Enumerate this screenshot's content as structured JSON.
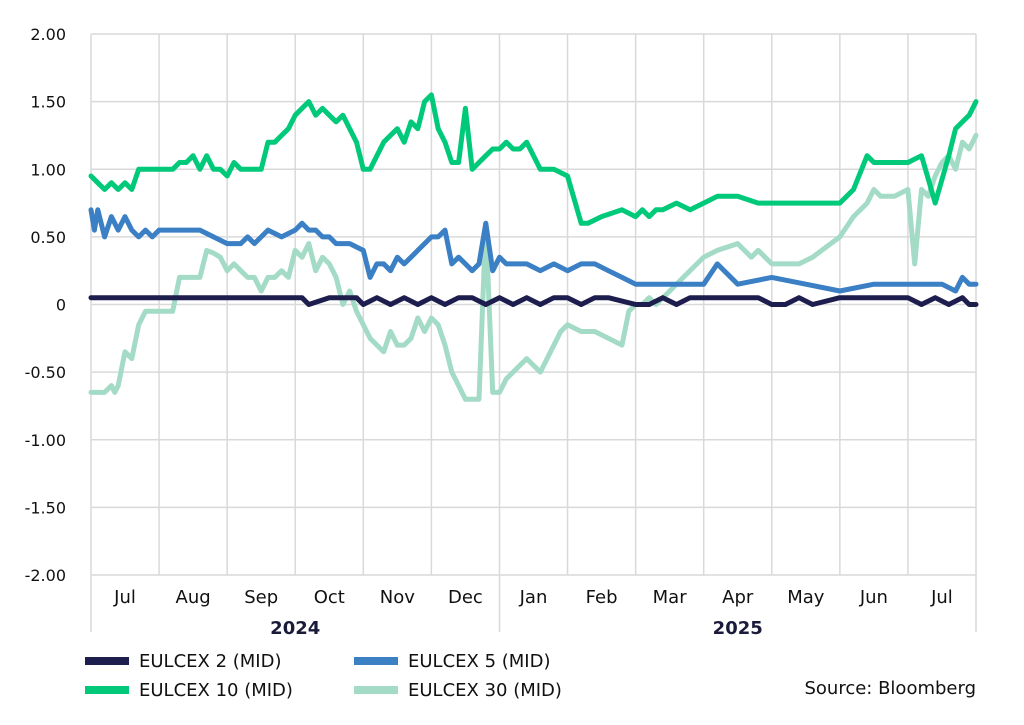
{
  "chart_data": {
    "type": "line",
    "title": "",
    "xlabel": "",
    "ylabel": "",
    "ylim": [
      -2.0,
      2.0
    ],
    "yticks": [
      "2.00",
      "1.50",
      "1.00",
      "0.50",
      "0",
      "-0.50",
      "-1.00",
      "-1.50",
      "-2.00"
    ],
    "ytick_values": [
      2.0,
      1.5,
      1.0,
      0.5,
      0,
      -0.5,
      -1.0,
      -1.5,
      -2.0
    ],
    "month_labels": [
      "Jul",
      "Aug",
      "Sep",
      "Oct",
      "Nov",
      "Dec",
      "Jan",
      "Feb",
      "Mar",
      "Apr",
      "May",
      "Jun",
      "Jul"
    ],
    "month_label_pos": [
      0.5,
      1.5,
      2.5,
      3.5,
      4.5,
      5.5,
      6.5,
      7.5,
      8.5,
      9.5,
      10.5,
      11.5,
      12.5
    ],
    "month_boundaries": [
      0,
      1,
      2,
      3,
      4,
      5,
      6,
      7,
      8,
      9,
      10,
      11,
      12,
      13
    ],
    "xlim": [
      0,
      13
    ],
    "years": [
      {
        "label": "2024",
        "pos": 3.0
      },
      {
        "label": "2025",
        "pos": 9.5
      }
    ],
    "grid": true,
    "legend_position": "bottom",
    "source": "Source: Bloomberg",
    "series": [
      {
        "name": "EULCEX 30 (MID)",
        "color": "#a3dbc6",
        "x": [
          0.0,
          0.1,
          0.2,
          0.3,
          0.35,
          0.4,
          0.5,
          0.6,
          0.7,
          0.8,
          1.0,
          1.2,
          1.3,
          1.4,
          1.5,
          1.6,
          1.7,
          1.8,
          1.9,
          2.0,
          2.1,
          2.2,
          2.3,
          2.4,
          2.5,
          2.6,
          2.7,
          2.8,
          2.9,
          3.0,
          3.1,
          3.2,
          3.3,
          3.4,
          3.5,
          3.6,
          3.7,
          3.8,
          3.9,
          4.0,
          4.1,
          4.2,
          4.3,
          4.4,
          4.5,
          4.6,
          4.7,
          4.8,
          4.9,
          5.0,
          5.1,
          5.2,
          5.3,
          5.4,
          5.5,
          5.6,
          5.7,
          5.8,
          5.9,
          6.0,
          6.05,
          6.1,
          6.2,
          6.3,
          6.4,
          6.5,
          6.6,
          6.7,
          6.8,
          6.9,
          7.0,
          7.2,
          7.4,
          7.6,
          7.8,
          7.9,
          8.0,
          8.1,
          8.2,
          8.3,
          8.5,
          8.7,
          8.9,
          9.0,
          9.2,
          9.5,
          9.7,
          9.8,
          10.0,
          10.2,
          10.4,
          10.6,
          11.0,
          11.2,
          11.4,
          11.5,
          11.6,
          11.8,
          12.0,
          12.1,
          12.2,
          12.3,
          12.4,
          12.5,
          12.6,
          12.7,
          12.8,
          12.9,
          13.0
        ],
        "values": [
          -0.65,
          -0.65,
          -0.65,
          -0.6,
          -0.65,
          -0.6,
          -0.35,
          -0.4,
          -0.15,
          -0.05,
          -0.05,
          -0.05,
          0.2,
          0.2,
          0.2,
          0.2,
          0.4,
          0.38,
          0.35,
          0.25,
          0.3,
          0.25,
          0.2,
          0.2,
          0.1,
          0.2,
          0.2,
          0.25,
          0.2,
          0.4,
          0.35,
          0.45,
          0.25,
          0.35,
          0.3,
          0.2,
          0.0,
          0.1,
          -0.05,
          -0.15,
          -0.25,
          -0.3,
          -0.35,
          -0.2,
          -0.3,
          -0.3,
          -0.25,
          -0.1,
          -0.2,
          -0.1,
          -0.15,
          -0.3,
          -0.5,
          -0.6,
          -0.7,
          -0.7,
          -0.7,
          0.6,
          -0.65,
          -0.65,
          -0.6,
          -0.55,
          -0.5,
          -0.45,
          -0.4,
          -0.45,
          -0.5,
          -0.4,
          -0.3,
          -0.2,
          -0.15,
          -0.2,
          -0.2,
          -0.25,
          -0.3,
          -0.05,
          0.0,
          0.0,
          0.05,
          0.0,
          0.1,
          0.2,
          0.3,
          0.35,
          0.4,
          0.45,
          0.35,
          0.4,
          0.3,
          0.3,
          0.3,
          0.35,
          0.5,
          0.65,
          0.75,
          0.85,
          0.8,
          0.8,
          0.85,
          0.3,
          0.85,
          0.8,
          0.95,
          1.05,
          1.1,
          1.0,
          1.2,
          1.15,
          1.25
        ]
      },
      {
        "name": "EULCEX 10 (MID)",
        "color": "#00c97a",
        "x": [
          0.0,
          0.1,
          0.2,
          0.3,
          0.4,
          0.5,
          0.6,
          0.7,
          0.8,
          1.0,
          1.2,
          1.3,
          1.4,
          1.5,
          1.6,
          1.7,
          1.8,
          1.9,
          2.0,
          2.1,
          2.2,
          2.3,
          2.4,
          2.5,
          2.6,
          2.7,
          2.8,
          2.9,
          3.0,
          3.1,
          3.2,
          3.3,
          3.4,
          3.5,
          3.6,
          3.7,
          3.8,
          3.9,
          4.0,
          4.1,
          4.2,
          4.3,
          4.4,
          4.5,
          4.6,
          4.7,
          4.8,
          4.9,
          5.0,
          5.1,
          5.2,
          5.3,
          5.4,
          5.5,
          5.6,
          5.7,
          5.8,
          5.9,
          6.0,
          6.1,
          6.2,
          6.3,
          6.4,
          6.5,
          6.6,
          6.8,
          7.0,
          7.2,
          7.3,
          7.5,
          7.8,
          8.0,
          8.1,
          8.2,
          8.3,
          8.4,
          8.6,
          8.8,
          9.0,
          9.2,
          9.5,
          9.8,
          10.0,
          10.3,
          10.5,
          10.7,
          11.0,
          11.2,
          11.4,
          11.5,
          11.6,
          11.8,
          12.0,
          12.2,
          12.4,
          12.6,
          12.7,
          12.8,
          12.9,
          13.0
        ],
        "values": [
          0.95,
          0.9,
          0.85,
          0.9,
          0.85,
          0.9,
          0.85,
          1.0,
          1.0,
          1.0,
          1.0,
          1.05,
          1.05,
          1.1,
          1.0,
          1.1,
          1.0,
          1.0,
          0.95,
          1.05,
          1.0,
          1.0,
          1.0,
          1.0,
          1.2,
          1.2,
          1.25,
          1.3,
          1.4,
          1.45,
          1.5,
          1.4,
          1.45,
          1.4,
          1.35,
          1.4,
          1.3,
          1.2,
          1.0,
          1.0,
          1.1,
          1.2,
          1.25,
          1.3,
          1.2,
          1.35,
          1.3,
          1.5,
          1.55,
          1.3,
          1.2,
          1.05,
          1.05,
          1.45,
          1.0,
          1.05,
          1.1,
          1.15,
          1.15,
          1.2,
          1.15,
          1.15,
          1.2,
          1.1,
          1.0,
          1.0,
          0.95,
          0.6,
          0.6,
          0.65,
          0.7,
          0.65,
          0.7,
          0.65,
          0.7,
          0.7,
          0.75,
          0.7,
          0.75,
          0.8,
          0.8,
          0.75,
          0.75,
          0.75,
          0.75,
          0.75,
          0.75,
          0.85,
          1.1,
          1.05,
          1.05,
          1.05,
          1.05,
          1.1,
          0.75,
          1.1,
          1.3,
          1.35,
          1.4,
          1.5
        ]
      },
      {
        "name": "EULCEX 5 (MID)",
        "color": "#3b7fc4",
        "x": [
          0.0,
          0.05,
          0.1,
          0.15,
          0.2,
          0.3,
          0.4,
          0.5,
          0.6,
          0.7,
          0.8,
          0.9,
          1.0,
          1.2,
          1.4,
          1.6,
          1.8,
          2.0,
          2.2,
          2.3,
          2.4,
          2.5,
          2.6,
          2.8,
          3.0,
          3.1,
          3.2,
          3.3,
          3.4,
          3.5,
          3.6,
          3.7,
          3.8,
          4.0,
          4.1,
          4.2,
          4.3,
          4.4,
          4.5,
          4.6,
          4.7,
          4.8,
          4.9,
          5.0,
          5.1,
          5.2,
          5.3,
          5.4,
          5.5,
          5.6,
          5.7,
          5.8,
          5.9,
          6.0,
          6.1,
          6.2,
          6.4,
          6.6,
          6.8,
          7.0,
          7.2,
          7.4,
          7.6,
          7.8,
          8.0,
          8.2,
          8.5,
          8.8,
          9.0,
          9.2,
          9.5,
          10.0,
          10.5,
          11.0,
          11.5,
          12.0,
          12.3,
          12.5,
          12.7,
          12.8,
          12.9,
          13.0
        ],
        "values": [
          0.7,
          0.55,
          0.7,
          0.6,
          0.5,
          0.65,
          0.55,
          0.65,
          0.55,
          0.5,
          0.55,
          0.5,
          0.55,
          0.55,
          0.55,
          0.55,
          0.5,
          0.45,
          0.45,
          0.5,
          0.45,
          0.5,
          0.55,
          0.5,
          0.55,
          0.6,
          0.55,
          0.55,
          0.5,
          0.5,
          0.45,
          0.45,
          0.45,
          0.4,
          0.2,
          0.3,
          0.3,
          0.25,
          0.35,
          0.3,
          0.35,
          0.4,
          0.45,
          0.5,
          0.5,
          0.55,
          0.3,
          0.35,
          0.3,
          0.25,
          0.3,
          0.6,
          0.25,
          0.35,
          0.3,
          0.3,
          0.3,
          0.25,
          0.3,
          0.25,
          0.3,
          0.3,
          0.25,
          0.2,
          0.15,
          0.15,
          0.15,
          0.15,
          0.15,
          0.3,
          0.15,
          0.2,
          0.15,
          0.1,
          0.15,
          0.15,
          0.15,
          0.15,
          0.1,
          0.2,
          0.15,
          0.15
        ]
      },
      {
        "name": "EULCEX 2 (MID)",
        "color": "#1d1d4e",
        "x": [
          0.0,
          1.0,
          2.0,
          3.0,
          3.1,
          3.2,
          3.5,
          3.7,
          3.9,
          4.0,
          4.2,
          4.4,
          4.6,
          4.8,
          5.0,
          5.2,
          5.4,
          5.6,
          5.8,
          6.0,
          6.2,
          6.4,
          6.6,
          6.8,
          7.0,
          7.2,
          7.4,
          7.6,
          8.0,
          8.2,
          8.4,
          8.6,
          8.8,
          9.0,
          9.4,
          9.8,
          10.0,
          10.2,
          10.4,
          10.6,
          11.0,
          11.4,
          11.8,
          12.0,
          12.2,
          12.4,
          12.6,
          12.8,
          12.9,
          13.0
        ],
        "values": [
          0.05,
          0.05,
          0.05,
          0.05,
          0.05,
          0.0,
          0.05,
          0.05,
          0.05,
          0.0,
          0.05,
          0.0,
          0.05,
          0.0,
          0.05,
          0.0,
          0.05,
          0.05,
          0.0,
          0.05,
          0.0,
          0.05,
          0.0,
          0.05,
          0.05,
          0.0,
          0.05,
          0.05,
          0.0,
          0.0,
          0.05,
          0.0,
          0.05,
          0.05,
          0.05,
          0.05,
          0.0,
          0.0,
          0.05,
          0.0,
          0.05,
          0.05,
          0.05,
          0.05,
          0.0,
          0.05,
          0.0,
          0.05,
          0.0,
          0.0
        ]
      }
    ],
    "legend_order": [
      3,
      2,
      1,
      0
    ]
  }
}
